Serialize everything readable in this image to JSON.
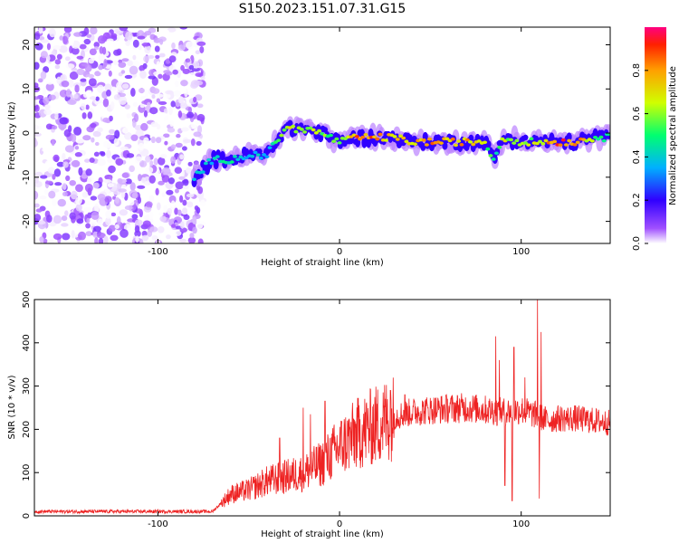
{
  "title": "S150.2023.151.07.31.G15",
  "chart_data": [
    {
      "type": "heatmap",
      "xlabel": "Height of straight line (km)",
      "ylabel": "Frequency (Hz)",
      "xlim": [
        -168,
        149
      ],
      "ylim": [
        -25,
        24
      ],
      "xticks": [
        -100,
        0,
        100
      ],
      "yticks": [
        -20,
        -10,
        0,
        10,
        20
      ],
      "colorbar": {
        "label": "Normalized spectral amplitude",
        "range": [
          0,
          1
        ],
        "ticks": [
          "0.0",
          "0.2",
          "0.4",
          "0.6",
          "0.8"
        ],
        "colormap": [
          "#ffffff",
          "#8a00ff",
          "#0000ff",
          "#00e0ff",
          "#00ff40",
          "#ffff00",
          "#ff8000",
          "#ff0000",
          "#ff00a0"
        ]
      },
      "ridge": {
        "description_free": true,
        "x": [
          -80,
          -70,
          -60,
          -50,
          -40,
          -30,
          -25,
          -20,
          -10,
          0,
          10,
          20,
          30,
          40,
          50,
          60,
          70,
          80,
          85,
          90,
          100,
          110,
          120,
          130,
          140,
          149
        ],
        "y": [
          -10,
          -6,
          -6,
          -5,
          -5,
          1,
          1,
          1,
          0,
          -2,
          -1,
          -1,
          -1,
          -2,
          -2,
          -2,
          -2,
          -2,
          -6,
          -1,
          -2,
          -2,
          -2,
          -2,
          -1,
          -1
        ],
        "amplitude": [
          0.4,
          0.4,
          0.5,
          0.4,
          0.4,
          0.65,
          0.75,
          0.7,
          0.6,
          0.6,
          0.95,
          0.85,
          0.8,
          0.75,
          0.9,
          0.85,
          0.8,
          0.7,
          0.45,
          0.7,
          0.6,
          0.7,
          0.95,
          0.9,
          0.6,
          0.5
        ]
      },
      "noise_region_x": [
        -168,
        -75
      ]
    },
    {
      "type": "line",
      "xlabel": "Height of straight line (km)",
      "ylabel": "SNR (10 * v/v)",
      "xlim": [
        -168,
        149
      ],
      "ylim": [
        0,
        500
      ],
      "xticks": [
        -100,
        0,
        100
      ],
      "yticks": [
        0,
        100,
        200,
        300,
        400,
        500
      ],
      "color": "#ee2222",
      "envelope": {
        "x": [
          -168,
          -70,
          -60,
          -50,
          -40,
          -30,
          -20,
          -10,
          0,
          10,
          20,
          30,
          40,
          50,
          60,
          70,
          80,
          90,
          100,
          110,
          115,
          120,
          130,
          140,
          149
        ],
        "y": [
          10,
          10,
          50,
          60,
          80,
          90,
          100,
          120,
          160,
          190,
          210,
          230,
          240,
          245,
          248,
          250,
          245,
          240,
          245,
          230,
          220,
          225,
          225,
          220,
          215
        ]
      },
      "spikes": [
        {
          "x": 86,
          "y": 415
        },
        {
          "x": 88,
          "y": 360
        },
        {
          "x": 96,
          "y": 390
        },
        {
          "x": 102,
          "y": 320
        },
        {
          "x": 109,
          "y": 500
        },
        {
          "x": 111,
          "y": 425
        },
        {
          "x": 91,
          "y": 70
        },
        {
          "x": 95,
          "y": 35
        },
        {
          "x": 110,
          "y": 40
        },
        {
          "x": -33,
          "y": 180
        },
        {
          "x": -20,
          "y": 250
        },
        {
          "x": -16,
          "y": 235
        },
        {
          "x": -8,
          "y": 265
        },
        {
          "x": 28,
          "y": 290
        },
        {
          "x": 36,
          "y": 280
        }
      ]
    }
  ]
}
